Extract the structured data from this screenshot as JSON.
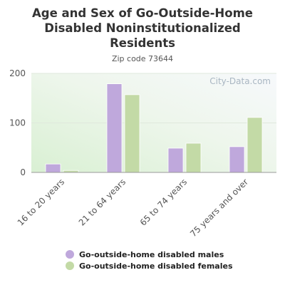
{
  "chart_data": {
    "type": "bar",
    "title_lines": [
      "Age and Sex of Go-Outside-Home",
      "Disabled Noninstitutionalized",
      "Residents"
    ],
    "subtitle": "Zip code 73644",
    "categories": [
      "16 to 20 years",
      "21 to 64 years",
      "65 to 74 years",
      "75 years and over"
    ],
    "series": [
      {
        "name": "Go-outside-home disabled males",
        "values": [
          17,
          179,
          49,
          52
        ],
        "color": "#bfa8dc"
      },
      {
        "name": "Go-outside-home disabled females",
        "values": [
          4,
          157,
          59,
          111
        ],
        "color": "#c3daa6"
      }
    ],
    "ylim": [
      0,
      200
    ],
    "yticks": [
      0,
      100,
      200
    ],
    "grid": true,
    "legend_position": "bottom"
  },
  "watermark": "City-Data.com"
}
